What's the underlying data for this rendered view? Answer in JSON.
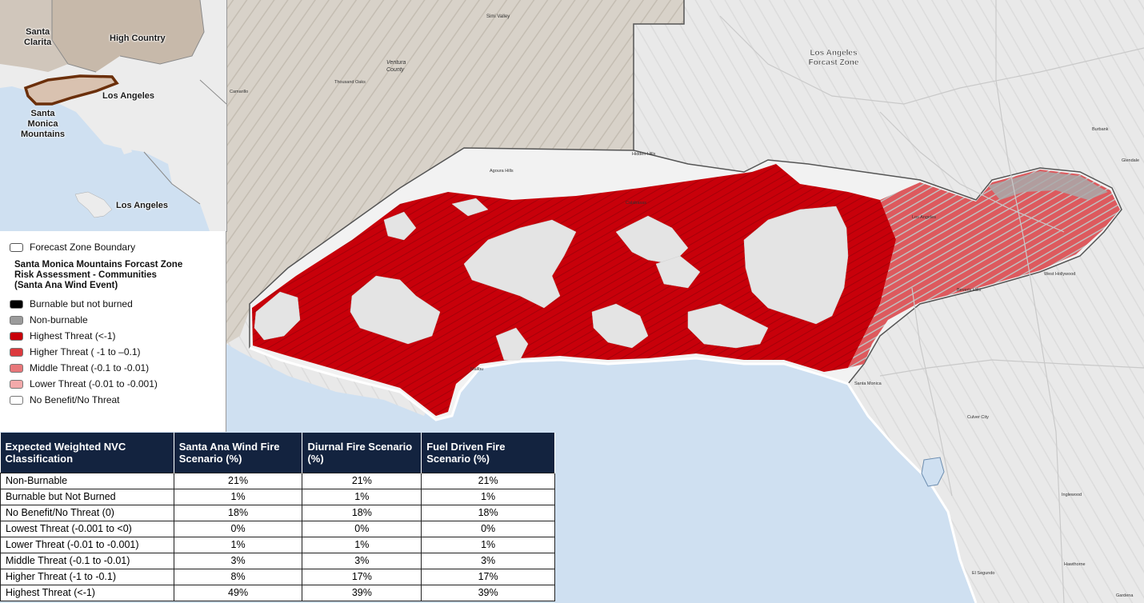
{
  "map_labels": {
    "simi_valley": "Simi Valley",
    "ventura_county": "Ventura\nCounty",
    "thousand_oaks": "Thousand Oaks",
    "camarillo": "Camarillo",
    "hidden_hills": "Hidden Hills",
    "agoura_hills": "Agoura Hills",
    "calabasas": "Calabasas",
    "malibu": "Malibu",
    "la_forecast_zone": "Los Angeles\nForcast Zone",
    "los_angeles": "Los Angeles",
    "burbank": "Burbank",
    "glendale": "Glendale",
    "west_hollywood": "West Hollywood",
    "beverly_hills": "Beverly Hills",
    "santa_monica": "Santa Monica",
    "culver_city": "Culver City",
    "inglewood": "Inglewood",
    "el_segundo": "El Segundo",
    "hawthorne": "Hawthorne",
    "gardena": "Gardena"
  },
  "inset": {
    "santa_clarita": "Santa\nClarita",
    "high_country": "High Country",
    "los_angeles": "Los Angeles",
    "santa_monica_mountains": "Santa\nMonica\nMountains",
    "los_angeles_island": "Los Angeles"
  },
  "legend": {
    "boundary": "Forecast Zone Boundary",
    "title": "Santa Monica Mountains Forcast Zone Risk Assessment - Communities (Santa Ana Wind Event)",
    "items": [
      {
        "label": "Burnable but not burned",
        "color": "#000000"
      },
      {
        "label": "Non-burnable",
        "color": "#9b9b9b"
      },
      {
        "label": "Highest Threat (<-1)",
        "color": "#c8000a"
      },
      {
        "label": "Higher Threat ( -1 to –0.1)",
        "color": "#dc3a3e"
      },
      {
        "label": "Middle Threat (-0.1 to -0.01)",
        "color": "#e8777a"
      },
      {
        "label": "Lower Threat (-0.01 to -0.001)",
        "color": "#f3a9aa"
      },
      {
        "label": "No Benefit/No Threat",
        "color": "#ffffff"
      }
    ]
  },
  "table": {
    "headers": [
      "Expected Weighted NVC Classification",
      "Santa Ana Wind Fire Scenario (%)",
      "Diurnal Fire Scenario (%)",
      "Fuel Driven Fire Scenario (%)"
    ],
    "rows": [
      [
        "Non-Burnable",
        "21%",
        "21%",
        "21%"
      ],
      [
        "Burnable but Not Burned",
        "1%",
        "1%",
        "1%"
      ],
      [
        "No Benefit/No Threat (0)",
        "18%",
        "18%",
        "18%"
      ],
      [
        "Lowest Threat (-0.001 to <0)",
        "0%",
        "0%",
        "0%"
      ],
      [
        "Lower Threat (-0.01 to -0.001)",
        "1%",
        "1%",
        "1%"
      ],
      [
        "Middle Threat (-0.1 to -0.01)",
        "3%",
        "3%",
        "3%"
      ],
      [
        "Higher Threat (-1 to -0.1)",
        "8%",
        "17%",
        "17%"
      ],
      [
        "Highest Threat (<-1)",
        "49%",
        "39%",
        "39%"
      ]
    ]
  },
  "colors": {
    "ocean": "#cfe0f1",
    "land": "#ececec",
    "ventura_terrain": "#d9d3cb",
    "highest": "#c8000a",
    "higher": "#dc3a3e",
    "nonburnable": "#a9a9a9",
    "header_bg": "#13233f"
  }
}
